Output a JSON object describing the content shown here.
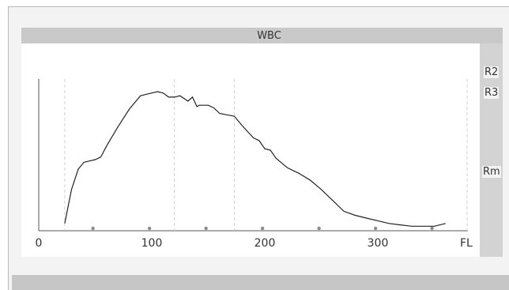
{
  "chart_data": {
    "type": "line",
    "title": "WBC",
    "xlabel": "FL",
    "ylabel": "",
    "xlim": [
      0,
      375
    ],
    "ylim": [
      0,
      1
    ],
    "x_ticks": [
      0,
      100,
      200,
      300
    ],
    "x_tick_labels": [
      "0",
      "100",
      "200",
      "300"
    ],
    "region_markers": [
      23,
      120,
      173
    ],
    "dot_markers": [
      48,
      98,
      148,
      198,
      248,
      298,
      348
    ],
    "right_labels": [
      "R2",
      "R3",
      "Rm"
    ],
    "x": [
      23,
      29,
      35,
      40,
      45,
      50,
      55,
      60,
      70,
      80,
      90,
      100,
      105,
      110,
      115,
      120,
      125,
      132,
      136,
      140,
      142,
      145,
      150,
      155,
      160,
      166,
      173,
      180,
      190,
      195,
      200,
      205,
      210,
      220,
      225,
      230,
      240,
      250,
      260,
      270,
      280,
      290,
      300,
      310,
      320,
      330,
      340,
      350,
      360
    ],
    "y": [
      0.03,
      0.28,
      0.43,
      0.48,
      0.49,
      0.5,
      0.52,
      0.6,
      0.74,
      0.87,
      0.97,
      0.99,
      1.0,
      0.99,
      0.96,
      0.96,
      0.97,
      0.93,
      0.96,
      0.89,
      0.9,
      0.9,
      0.9,
      0.88,
      0.84,
      0.83,
      0.82,
      0.75,
      0.66,
      0.64,
      0.58,
      0.57,
      0.51,
      0.44,
      0.42,
      0.4,
      0.35,
      0.28,
      0.2,
      0.12,
      0.09,
      0.07,
      0.05,
      0.03,
      0.02,
      0.01,
      0.01,
      0.01,
      0.03
    ]
  }
}
